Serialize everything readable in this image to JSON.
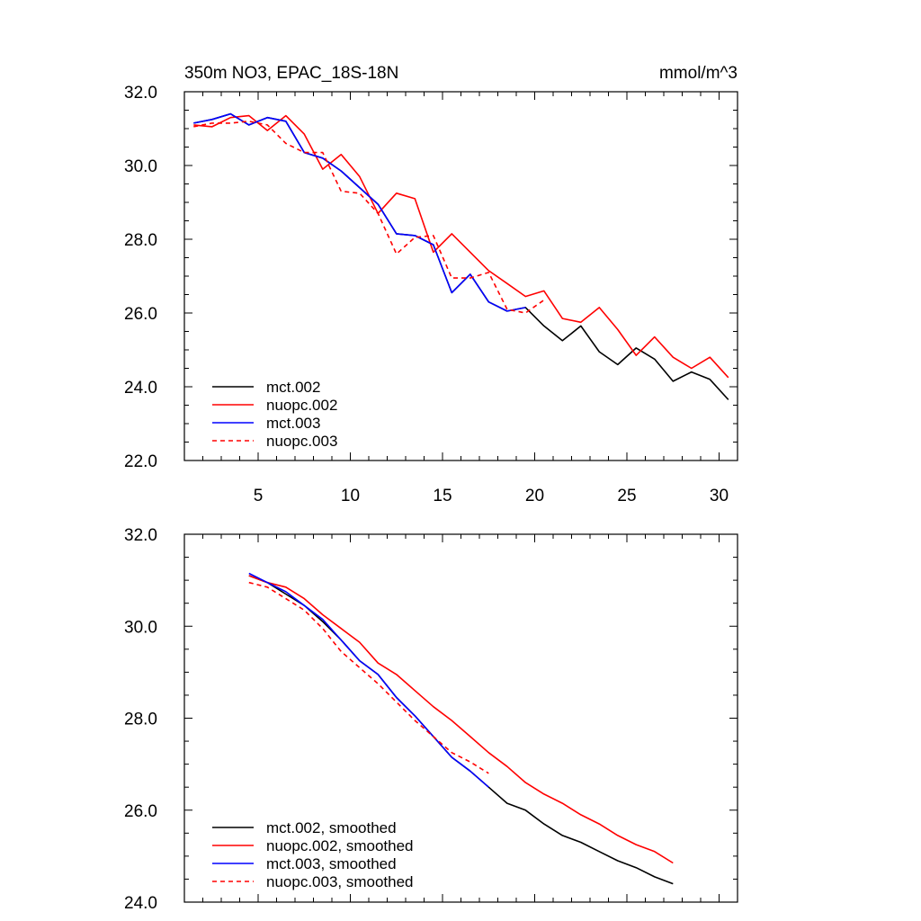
{
  "title": "350m NO3, EPAC_18S-18N",
  "units": "mmol/m^3",
  "chart_data": [
    {
      "type": "line",
      "title": "350m NO3, EPAC_18S-18N",
      "units": "mmol/m^3",
      "xlim": [
        1,
        31
      ],
      "ylim": [
        22,
        32
      ],
      "xticks": [
        5,
        10,
        15,
        20,
        25,
        30
      ],
      "xtick_labels": [
        "5",
        "10",
        "15",
        "20",
        "25",
        "30"
      ],
      "yticks": [
        22,
        24,
        26,
        28,
        30,
        32
      ],
      "ytick_labels": [
        "22.0",
        "24.0",
        "26.0",
        "28.0",
        "30.0",
        "32.0"
      ],
      "legend_position": "bottom-left",
      "series": [
        {
          "name": "mct.002",
          "color": "#000000",
          "dash": "solid",
          "x": [
            1.5,
            2.5,
            3.5,
            4.5,
            5.5,
            6.5,
            7.5,
            8.5,
            9.5,
            10.5,
            11.5,
            12.5,
            13.5,
            14.5,
            15.5,
            16.5,
            17.5,
            18.5,
            19.5,
            20.5,
            21.5,
            22.5,
            23.5,
            24.5,
            25.5,
            26.5,
            27.5,
            28.5,
            29.5,
            30.5
          ],
          "values": [
            31.15,
            31.25,
            31.4,
            31.1,
            31.3,
            31.2,
            30.35,
            30.2,
            29.85,
            29.4,
            28.95,
            28.15,
            28.1,
            27.85,
            26.55,
            27.05,
            26.3,
            26.05,
            26.15,
            25.65,
            25.25,
            25.65,
            24.95,
            24.6,
            25.05,
            24.75,
            24.15,
            24.4,
            24.2,
            23.65
          ]
        },
        {
          "name": "nuopc.002",
          "color": "#ff0000",
          "dash": "solid",
          "x": [
            1.5,
            2.5,
            3.5,
            4.5,
            5.5,
            6.5,
            7.5,
            8.5,
            9.5,
            10.5,
            11.5,
            12.5,
            13.5,
            14.5,
            15.5,
            16.5,
            17.5,
            18.5,
            19.5,
            20.5,
            21.5,
            22.5,
            23.5,
            24.5,
            25.5,
            26.5,
            27.5,
            28.5,
            29.5,
            30.5
          ],
          "values": [
            31.1,
            31.05,
            31.3,
            31.35,
            30.95,
            31.35,
            30.85,
            29.9,
            30.3,
            29.7,
            28.7,
            29.25,
            29.1,
            27.65,
            28.15,
            27.65,
            27.15,
            26.8,
            26.45,
            26.6,
            25.85,
            25.75,
            26.15,
            25.55,
            24.85,
            25.35,
            24.8,
            24.5,
            24.8,
            24.25
          ]
        },
        {
          "name": "mct.003",
          "color": "#0000ff",
          "dash": "solid",
          "x": [
            1.5,
            2.5,
            3.5,
            4.5,
            5.5,
            6.5,
            7.5,
            8.5,
            9.5,
            10.5,
            11.5,
            12.5,
            13.5,
            14.5,
            15.5,
            16.5,
            17.5,
            18.5,
            19.5
          ],
          "values": [
            31.15,
            31.25,
            31.4,
            31.1,
            31.3,
            31.2,
            30.35,
            30.2,
            29.85,
            29.4,
            28.95,
            28.15,
            28.1,
            27.85,
            26.55,
            27.05,
            26.3,
            26.05,
            26.15
          ]
        },
        {
          "name": "nuopc.003",
          "color": "#ff0000",
          "dash": "dashed",
          "x": [
            1.5,
            2.5,
            3.5,
            4.5,
            5.5,
            6.5,
            7.5,
            8.5,
            9.5,
            10.5,
            11.5,
            12.5,
            13.5,
            14.5,
            15.5,
            16.5,
            17.5,
            18.5,
            19.5,
            20.5
          ],
          "values": [
            31.05,
            31.15,
            31.15,
            31.2,
            31.1,
            30.6,
            30.35,
            30.35,
            29.3,
            29.25,
            28.7,
            27.6,
            28.05,
            28.1,
            26.95,
            26.95,
            27.1,
            26.1,
            26.0,
            26.35
          ]
        }
      ]
    },
    {
      "type": "line",
      "xlim": [
        1,
        31
      ],
      "ylim": [
        24,
        32
      ],
      "xticks": [
        5,
        10,
        15,
        20,
        25,
        30
      ],
      "yticks": [
        24,
        26,
        28,
        30,
        32
      ],
      "ytick_labels": [
        "24.0",
        "26.0",
        "28.0",
        "30.0",
        "32.0"
      ],
      "legend_position": "bottom-left",
      "series": [
        {
          "name": "mct.002, smoothed",
          "color": "#000000",
          "dash": "solid",
          "x": [
            4.5,
            5.5,
            6.5,
            7.5,
            8.5,
            9.5,
            10.5,
            11.5,
            12.5,
            13.5,
            14.5,
            15.5,
            16.5,
            17.5,
            18.5,
            19.5,
            20.5,
            21.5,
            22.5,
            23.5,
            24.5,
            25.5,
            26.5,
            27.5
          ],
          "values": [
            31.1,
            30.95,
            30.7,
            30.45,
            30.1,
            29.7,
            29.25,
            28.95,
            28.45,
            28.05,
            27.6,
            27.15,
            26.85,
            26.5,
            26.15,
            26.0,
            25.7,
            25.45,
            25.3,
            25.1,
            24.9,
            24.75,
            24.55,
            24.4
          ]
        },
        {
          "name": "nuopc.002, smoothed",
          "color": "#ff0000",
          "dash": "solid",
          "x": [
            4.5,
            5.5,
            6.5,
            7.5,
            8.5,
            9.5,
            10.5,
            11.5,
            12.5,
            13.5,
            14.5,
            15.5,
            16.5,
            17.5,
            18.5,
            19.5,
            20.5,
            21.5,
            22.5,
            23.5,
            24.5,
            25.5,
            26.5,
            27.5
          ],
          "values": [
            31.1,
            30.95,
            30.85,
            30.6,
            30.25,
            29.95,
            29.65,
            29.2,
            28.95,
            28.6,
            28.25,
            27.95,
            27.6,
            27.25,
            26.95,
            26.6,
            26.35,
            26.15,
            25.9,
            25.7,
            25.45,
            25.25,
            25.1,
            24.85
          ]
        },
        {
          "name": "mct.003, smoothed",
          "color": "#0000ff",
          "dash": "solid",
          "x": [
            4.5,
            5.5,
            6.5,
            7.5,
            8.5,
            9.5,
            10.5,
            11.5,
            12.5,
            13.5,
            14.5,
            15.5,
            16.5,
            17.5
          ],
          "values": [
            31.15,
            30.95,
            30.75,
            30.45,
            30.15,
            29.7,
            29.25,
            28.95,
            28.45,
            28.05,
            27.6,
            27.15,
            26.85,
            26.5
          ]
        },
        {
          "name": "nuopc.003, smoothed",
          "color": "#ff0000",
          "dash": "dashed",
          "x": [
            4.5,
            5.5,
            6.5,
            7.5,
            8.5,
            9.5,
            10.5,
            11.5,
            12.5,
            13.5,
            14.5,
            15.5,
            16.5,
            17.5
          ],
          "values": [
            30.95,
            30.85,
            30.6,
            30.35,
            29.95,
            29.45,
            29.1,
            28.75,
            28.35,
            27.95,
            27.6,
            27.25,
            27.05,
            26.8
          ]
        }
      ]
    }
  ]
}
